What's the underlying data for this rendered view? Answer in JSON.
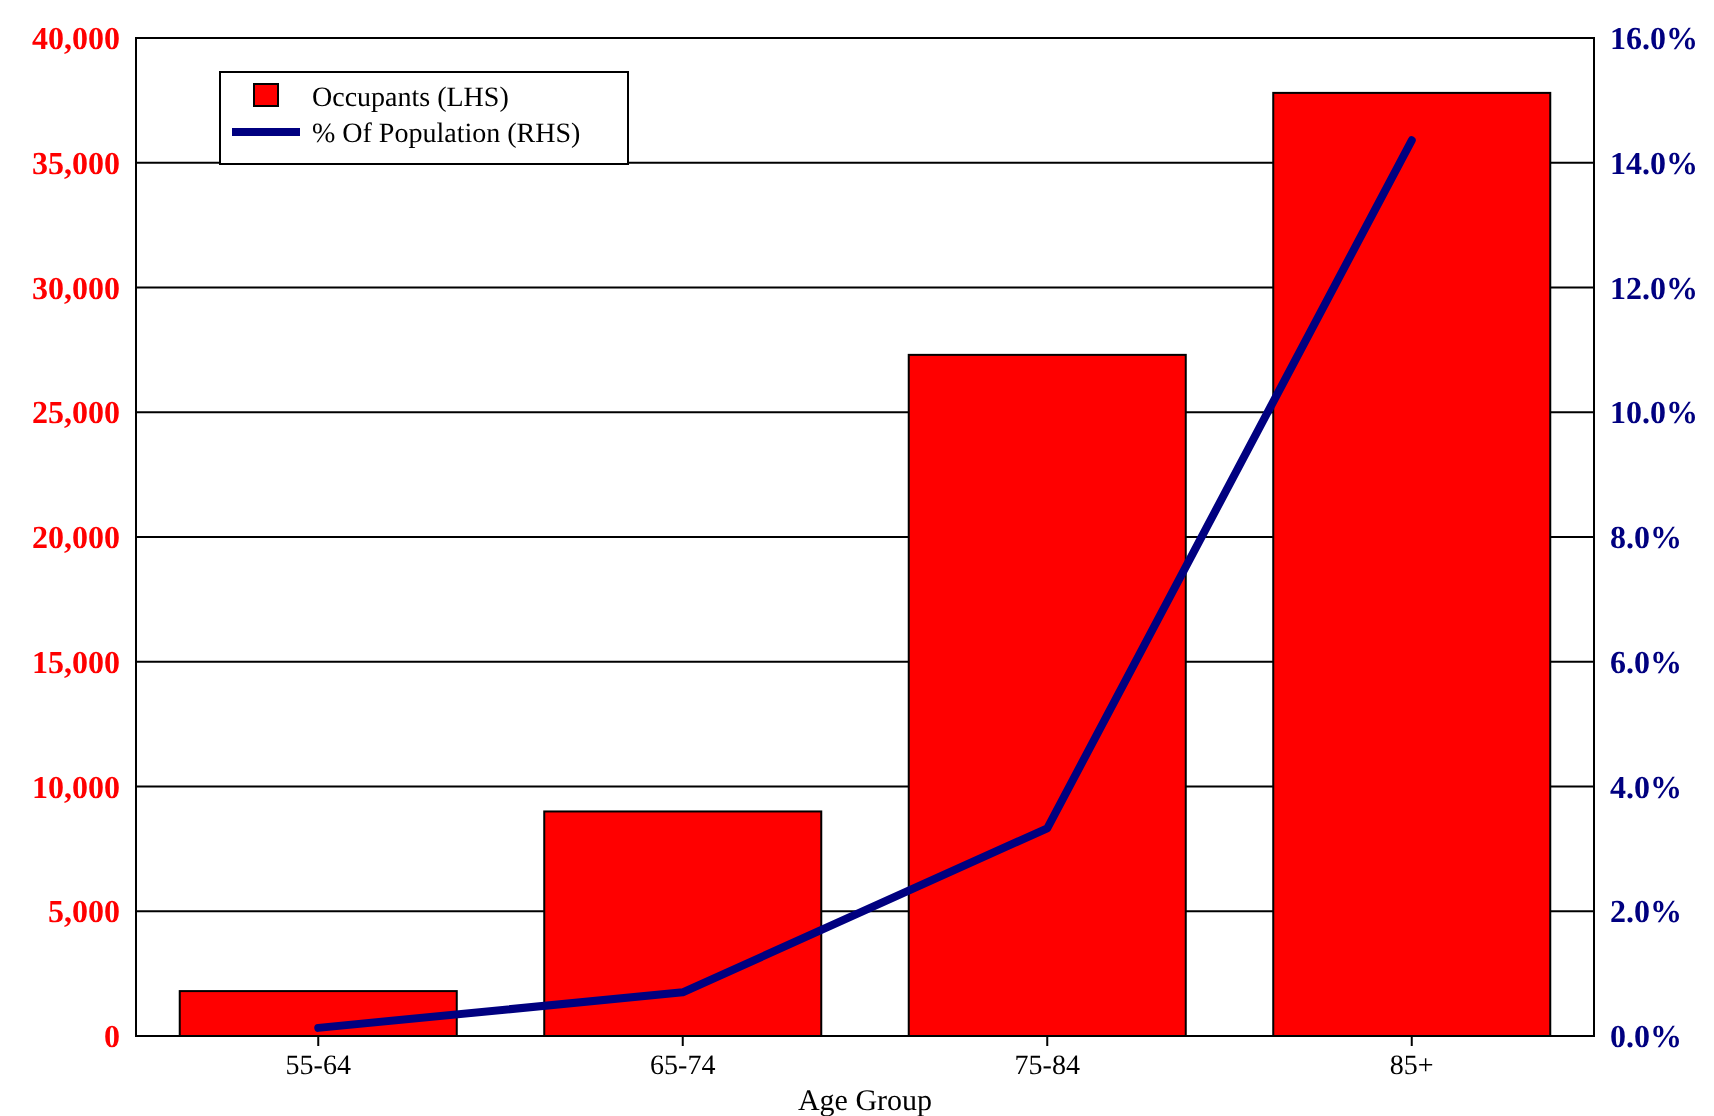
{
  "chart_data": {
    "type": "bar",
    "xlabel": "Age Group",
    "categories": [
      "55-64",
      "65-74",
      "75-84",
      "85+"
    ],
    "series": [
      {
        "name": "Occupants (LHS)",
        "color": "#ff0000",
        "values": [
          1800,
          9000,
          27300,
          37800
        ]
      },
      {
        "name": "% Of Population (RHS)",
        "type": "line",
        "axis": "y2",
        "color": "#000080",
        "values": [
          0.13,
          0.7,
          3.33,
          14.36
        ]
      }
    ],
    "ylim": [
      0,
      40000
    ],
    "yticks": [
      {
        "value": 0,
        "label": "0"
      },
      {
        "value": 5000,
        "label": "5,000"
      },
      {
        "value": 10000,
        "label": "10,000"
      },
      {
        "value": 15000,
        "label": "15,000"
      },
      {
        "value": 20000,
        "label": "20,000"
      },
      {
        "value": 25000,
        "label": "25,000"
      },
      {
        "value": 30000,
        "label": "30,000"
      },
      {
        "value": 35000,
        "label": "35,000"
      },
      {
        "value": 40000,
        "label": "40,000"
      }
    ],
    "y2lim": [
      0,
      16
    ],
    "y2ticks": [
      {
        "value": 0,
        "label": "0.0%"
      },
      {
        "value": 2,
        "label": "2.0%"
      },
      {
        "value": 4,
        "label": "4.0%"
      },
      {
        "value": 6,
        "label": "6.0%"
      },
      {
        "value": 8,
        "label": "8.0%"
      },
      {
        "value": 10,
        "label": "10.0%"
      },
      {
        "value": 12,
        "label": "12.0%"
      },
      {
        "value": 14,
        "label": "14.0%"
      },
      {
        "value": 16,
        "label": "16.0%"
      }
    ],
    "grid": "y",
    "legend": "top left"
  }
}
